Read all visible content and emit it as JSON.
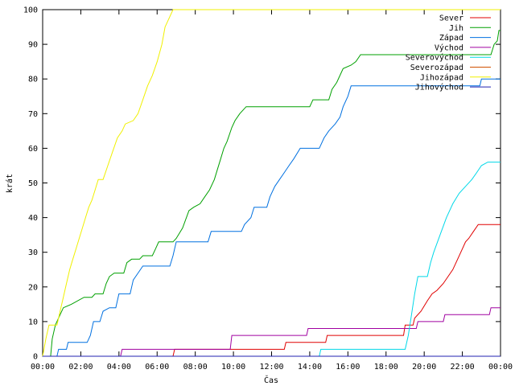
{
  "chart_data": {
    "type": "line",
    "xlabel": "Čas",
    "ylabel": "krát",
    "xlim": [
      "00:00",
      "24:00"
    ],
    "ylim": [
      0,
      100
    ],
    "x_ticks": [
      "00:00",
      "02:00",
      "04:00",
      "06:00",
      "08:00",
      "10:00",
      "12:00",
      "14:00",
      "16:00",
      "18:00",
      "20:00",
      "22:00",
      "00:00"
    ],
    "y_ticks": [
      0,
      10,
      20,
      30,
      40,
      50,
      60,
      70,
      80,
      90,
      100
    ],
    "grid": false,
    "legend_position": "top-right",
    "series": [
      {
        "name": "Sever",
        "color": "#e00000",
        "points": [
          [
            "00:00",
            0
          ],
          [
            "06:50",
            0
          ],
          [
            "06:55",
            2
          ],
          [
            "12:40",
            2
          ],
          [
            "12:45",
            4
          ],
          [
            "14:50",
            4
          ],
          [
            "14:55",
            6
          ],
          [
            "18:55",
            6
          ],
          [
            "19:00",
            9
          ],
          [
            "19:25",
            9
          ],
          [
            "19:30",
            11
          ],
          [
            "19:50",
            13
          ],
          [
            "20:10",
            16
          ],
          [
            "20:25",
            18
          ],
          [
            "20:40",
            19
          ],
          [
            "21:00",
            21
          ],
          [
            "21:15",
            23
          ],
          [
            "21:30",
            25
          ],
          [
            "21:45",
            28
          ],
          [
            "22:00",
            31
          ],
          [
            "22:10",
            33
          ],
          [
            "22:20",
            34
          ],
          [
            "22:35",
            36
          ],
          [
            "22:50",
            38
          ],
          [
            "24:00",
            38
          ]
        ]
      },
      {
        "name": "Jih",
        "color": "#00a000",
        "points": [
          [
            "00:00",
            0
          ],
          [
            "00:25",
            0
          ],
          [
            "00:30",
            5
          ],
          [
            "00:40",
            9
          ],
          [
            "00:55",
            12
          ],
          [
            "01:05",
            14
          ],
          [
            "01:30",
            15
          ],
          [
            "02:10",
            17
          ],
          [
            "02:35",
            17
          ],
          [
            "02:45",
            18
          ],
          [
            "03:10",
            18
          ],
          [
            "03:20",
            21
          ],
          [
            "03:30",
            23
          ],
          [
            "03:45",
            24
          ],
          [
            "04:15",
            24
          ],
          [
            "04:25",
            27
          ],
          [
            "04:40",
            28
          ],
          [
            "05:05",
            28
          ],
          [
            "05:15",
            29
          ],
          [
            "05:45",
            29
          ],
          [
            "05:55",
            31
          ],
          [
            "06:05",
            33
          ],
          [
            "06:50",
            33
          ],
          [
            "07:00",
            34
          ],
          [
            "07:20",
            37
          ],
          [
            "07:40",
            42
          ],
          [
            "07:55",
            43
          ],
          [
            "08:15",
            44
          ],
          [
            "08:30",
            46
          ],
          [
            "08:45",
            48
          ],
          [
            "09:00",
            51
          ],
          [
            "09:10",
            54
          ],
          [
            "09:20",
            57
          ],
          [
            "09:30",
            60
          ],
          [
            "09:40",
            62
          ],
          [
            "09:55",
            66
          ],
          [
            "10:05",
            68
          ],
          [
            "10:20",
            70
          ],
          [
            "10:40",
            72
          ],
          [
            "12:25",
            72
          ],
          [
            "12:35",
            72
          ],
          [
            "14:00",
            72
          ],
          [
            "14:10",
            74
          ],
          [
            "15:00",
            74
          ],
          [
            "15:10",
            77
          ],
          [
            "15:25",
            79
          ],
          [
            "15:45",
            83
          ],
          [
            "16:10",
            84
          ],
          [
            "16:25",
            85
          ],
          [
            "16:40",
            87
          ],
          [
            "17:00",
            87
          ],
          [
            "23:30",
            87
          ],
          [
            "23:40",
            90
          ],
          [
            "23:50",
            91
          ],
          [
            "23:55",
            94
          ],
          [
            "24:00",
            94
          ]
        ]
      },
      {
        "name": "Západ",
        "color": "#0070e0",
        "points": [
          [
            "00:00",
            0
          ],
          [
            "00:45",
            0
          ],
          [
            "00:50",
            2
          ],
          [
            "01:15",
            2
          ],
          [
            "01:20",
            4
          ],
          [
            "02:20",
            4
          ],
          [
            "02:30",
            6
          ],
          [
            "02:40",
            10
          ],
          [
            "03:00",
            10
          ],
          [
            "03:10",
            13
          ],
          [
            "03:30",
            14
          ],
          [
            "03:50",
            14
          ],
          [
            "04:00",
            18
          ],
          [
            "04:35",
            18
          ],
          [
            "04:45",
            22
          ],
          [
            "05:00",
            24
          ],
          [
            "05:15",
            26
          ],
          [
            "06:40",
            26
          ],
          [
            "06:50",
            29
          ],
          [
            "07:00",
            33
          ],
          [
            "08:40",
            33
          ],
          [
            "08:50",
            36
          ],
          [
            "10:25",
            36
          ],
          [
            "10:35",
            38
          ],
          [
            "10:55",
            40
          ],
          [
            "11:05",
            43
          ],
          [
            "11:45",
            43
          ],
          [
            "11:55",
            46
          ],
          [
            "12:10",
            49
          ],
          [
            "12:25",
            51
          ],
          [
            "12:40",
            53
          ],
          [
            "12:55",
            55
          ],
          [
            "13:10",
            57
          ],
          [
            "13:30",
            60
          ],
          [
            "14:30",
            60
          ],
          [
            "14:45",
            63
          ],
          [
            "15:00",
            65
          ],
          [
            "15:20",
            67
          ],
          [
            "15:35",
            69
          ],
          [
            "15:45",
            72
          ],
          [
            "16:00",
            75
          ],
          [
            "16:10",
            78
          ],
          [
            "22:55",
            78
          ],
          [
            "23:00",
            80
          ],
          [
            "24:00",
            80
          ]
        ]
      },
      {
        "name": "Východ",
        "color": "#a000a0",
        "points": [
          [
            "00:00",
            0
          ],
          [
            "04:05",
            0
          ],
          [
            "04:10",
            2
          ],
          [
            "09:50",
            2
          ],
          [
            "09:55",
            6
          ],
          [
            "13:50",
            6
          ],
          [
            "13:55",
            8
          ],
          [
            "19:35",
            8
          ],
          [
            "19:40",
            10
          ],
          [
            "21:00",
            10
          ],
          [
            "21:05",
            12
          ],
          [
            "23:25",
            12
          ],
          [
            "23:30",
            14
          ],
          [
            "24:00",
            14
          ]
        ]
      },
      {
        "name": "Severovýchod",
        "color": "#00d8e8",
        "points": [
          [
            "00:00",
            0
          ],
          [
            "14:30",
            0
          ],
          [
            "14:35",
            2
          ],
          [
            "19:00",
            2
          ],
          [
            "19:10",
            6
          ],
          [
            "19:20",
            12
          ],
          [
            "19:30",
            18
          ],
          [
            "19:40",
            23
          ],
          [
            "20:10",
            23
          ],
          [
            "20:20",
            27
          ],
          [
            "20:30",
            30
          ],
          [
            "20:50",
            35
          ],
          [
            "21:10",
            40
          ],
          [
            "21:30",
            44
          ],
          [
            "21:50",
            47
          ],
          [
            "22:10",
            49
          ],
          [
            "22:30",
            51
          ],
          [
            "22:45",
            53
          ],
          [
            "23:00",
            55
          ],
          [
            "23:20",
            56
          ],
          [
            "24:00",
            56
          ]
        ]
      },
      {
        "name": "Severozápad",
        "color": "#d05000",
        "points": [
          [
            "00:00",
            0
          ],
          [
            "24:00",
            0
          ]
        ]
      },
      {
        "name": "Jihozápad",
        "color": "#f0f000",
        "points": [
          [
            "00:00",
            0
          ],
          [
            "00:10",
            5
          ],
          [
            "00:20",
            9
          ],
          [
            "00:45",
            9
          ],
          [
            "00:55",
            13
          ],
          [
            "01:05",
            17
          ],
          [
            "01:15",
            21
          ],
          [
            "01:25",
            25
          ],
          [
            "01:35",
            28
          ],
          [
            "01:45",
            31
          ],
          [
            "01:55",
            34
          ],
          [
            "02:05",
            37
          ],
          [
            "02:15",
            40
          ],
          [
            "02:25",
            43
          ],
          [
            "02:35",
            45
          ],
          [
            "02:45",
            48
          ],
          [
            "02:55",
            51
          ],
          [
            "03:10",
            51
          ],
          [
            "03:25",
            55
          ],
          [
            "03:40",
            59
          ],
          [
            "03:55",
            63
          ],
          [
            "04:10",
            65
          ],
          [
            "04:20",
            67
          ],
          [
            "04:45",
            68
          ],
          [
            "05:00",
            70
          ],
          [
            "05:15",
            74
          ],
          [
            "05:30",
            78
          ],
          [
            "05:45",
            81
          ],
          [
            "06:00",
            85
          ],
          [
            "06:15",
            90
          ],
          [
            "06:25",
            95
          ],
          [
            "06:40",
            98
          ],
          [
            "06:50",
            100
          ],
          [
            "24:00",
            100
          ]
        ]
      },
      {
        "name": "Jihovýchod",
        "color": "#2020b0",
        "points": [
          [
            "00:00",
            0
          ],
          [
            "24:00",
            0
          ]
        ]
      }
    ]
  }
}
